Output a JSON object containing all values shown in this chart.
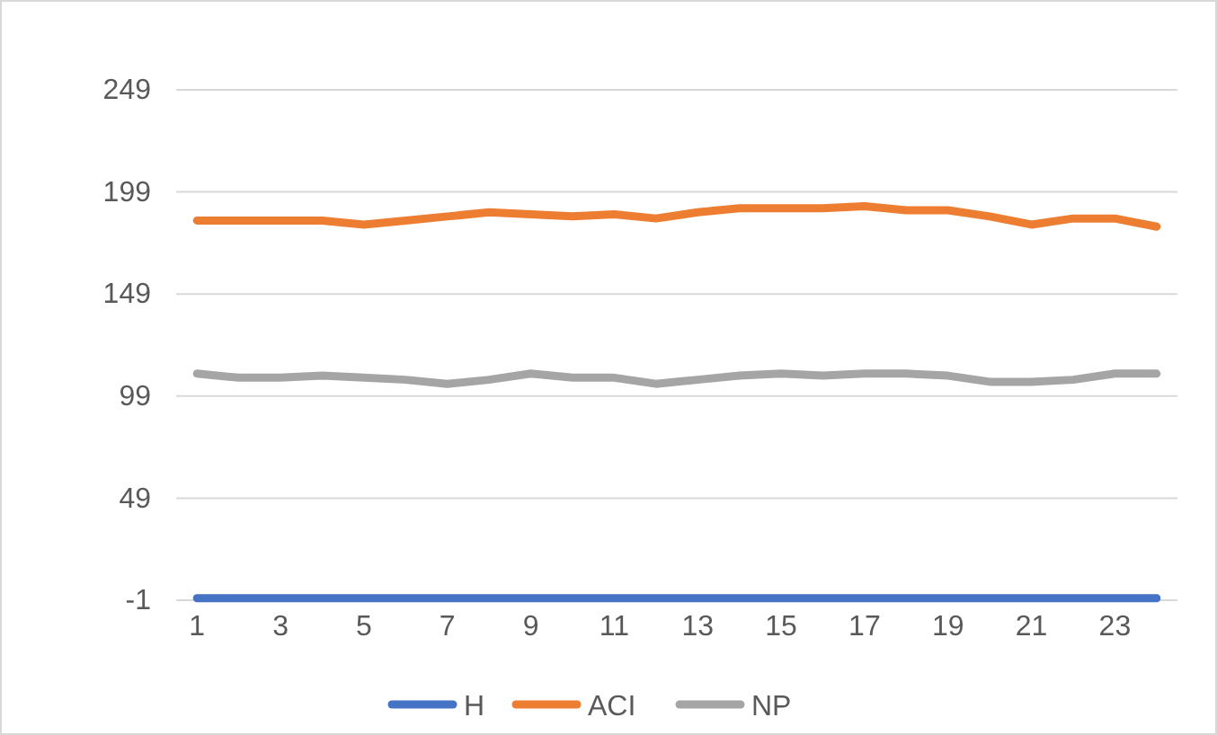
{
  "chart_data": {
    "type": "line",
    "x": [
      1,
      2,
      3,
      4,
      5,
      6,
      7,
      8,
      9,
      10,
      11,
      12,
      13,
      14,
      15,
      16,
      17,
      18,
      19,
      20,
      21,
      22,
      23,
      24
    ],
    "xlim": [
      0.5,
      24.5
    ],
    "xticks": [
      1,
      3,
      5,
      7,
      9,
      11,
      13,
      15,
      17,
      19,
      21,
      23
    ],
    "series": [
      {
        "name": "H",
        "color": "#4472c4",
        "values": [
          0,
          0,
          0,
          0,
          0,
          0,
          0,
          0,
          0,
          0,
          0,
          0,
          0,
          0,
          0,
          0,
          0,
          0,
          0,
          0,
          0,
          0,
          0,
          0
        ]
      },
      {
        "name": "ACI",
        "color": "#ed7d31",
        "values": [
          185,
          185,
          185,
          185,
          183,
          185,
          187,
          189,
          188,
          187,
          188,
          186,
          189,
          191,
          191,
          191,
          192,
          190,
          190,
          187,
          183,
          186,
          186,
          182
        ]
      },
      {
        "name": "NP",
        "color": "#a5a5a5",
        "values": [
          110,
          108,
          108,
          109,
          108,
          107,
          105,
          107,
          110,
          108,
          108,
          105,
          107,
          109,
          110,
          109,
          110,
          110,
          109,
          106,
          106,
          107,
          110,
          110
        ]
      }
    ],
    "ylim": [
      -1,
      249
    ],
    "yticks": [
      -1,
      49,
      99,
      149,
      199,
      249
    ],
    "grid": "y",
    "legend": "bottom",
    "marker": "none",
    "line_style": "solid"
  }
}
